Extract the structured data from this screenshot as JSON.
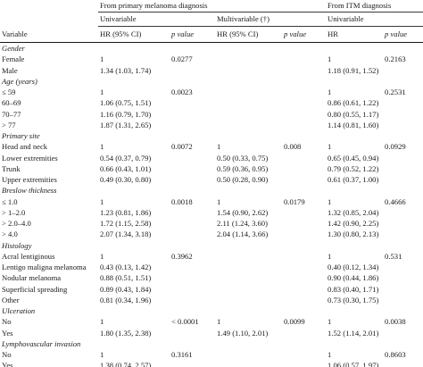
{
  "header": {
    "group_primary": "From primary melanoma diagnosis",
    "group_itm": "From ITM diagnosis",
    "sub_univariable": "Univariable",
    "sub_multivariable": "Multivariable (†)",
    "sub_univariable_itm": "Univariable",
    "col_variable": "Variable",
    "col_hr_univ": "HR (95% CI)",
    "col_p_univ": "p value",
    "col_hr_multi": "HR (95% CI)",
    "col_p_multi": "p value",
    "col_hr_itm": "HR",
    "col_p_itm": "p value"
  },
  "rows": [
    {
      "type": "group",
      "label": "Gender"
    },
    {
      "type": "row",
      "label": "Female",
      "hr_u": "1",
      "p_u": "0.0277",
      "hr_m": "",
      "p_m": "",
      "hr_i": "1",
      "p_i": "0.2163"
    },
    {
      "type": "row",
      "label": "Male",
      "hr_u": "1.34 (1.03, 1.74)",
      "p_u": "",
      "hr_m": "",
      "p_m": "",
      "hr_i": "1.18 (0.91, 1.52)",
      "p_i": ""
    },
    {
      "type": "group",
      "label": "Age (years)"
    },
    {
      "type": "row",
      "label": "≤ 59",
      "hr_u": "1",
      "p_u": "0.0023",
      "hr_m": "",
      "p_m": "",
      "hr_i": "1",
      "p_i": "0.2531"
    },
    {
      "type": "row",
      "label": "60–69",
      "hr_u": "1.06 (0.75, 1.51)",
      "p_u": "",
      "hr_m": "",
      "p_m": "",
      "hr_i": "0.86 (0.61, 1.22)",
      "p_i": ""
    },
    {
      "type": "row",
      "label": "70–77",
      "hr_u": "1.16 (0.79, 1.70)",
      "p_u": "",
      "hr_m": "",
      "p_m": "",
      "hr_i": "0.80 (0.55, 1.17)",
      "p_i": ""
    },
    {
      "type": "row",
      "label": "> 77",
      "hr_u": "1.87 (1.31, 2.65)",
      "p_u": "",
      "hr_m": "",
      "p_m": "",
      "hr_i": "1.14 (0.81, 1.60)",
      "p_i": ""
    },
    {
      "type": "group",
      "label": "Primary site"
    },
    {
      "type": "row",
      "label": "Head and neck",
      "hr_u": "1",
      "p_u": "0.0072",
      "hr_m": "1",
      "p_m": "0.008",
      "hr_i": "1",
      "p_i": "0.0929"
    },
    {
      "type": "row",
      "label": "Lower extremities",
      "hr_u": "0.54 (0.37, 0.79)",
      "p_u": "",
      "hr_m": "0.50 (0.33, 0.75)",
      "p_m": "",
      "hr_i": "0.65 (0.45, 0.94)",
      "p_i": ""
    },
    {
      "type": "row",
      "label": "Trunk",
      "hr_u": "0.66 (0.43, 1.01)",
      "p_u": "",
      "hr_m": "0.59 (0.36, 0.95)",
      "p_m": "",
      "hr_i": "0.79 (0.52, 1.22)",
      "p_i": ""
    },
    {
      "type": "row",
      "label": "Upper extremities",
      "hr_u": "0.49 (0.30, 0.80)",
      "p_u": "",
      "hr_m": "0.50 (0.28, 0.90)",
      "p_m": "",
      "hr_i": "0.61 (0.37, 1.00)",
      "p_i": ""
    },
    {
      "type": "group",
      "label": "Breslow thickness"
    },
    {
      "type": "row",
      "label": "≤ 1.0",
      "hr_u": "1",
      "p_u": "0.0018",
      "hr_m": "1",
      "p_m": "0.0179",
      "hr_i": "1",
      "p_i": "0.4666"
    },
    {
      "type": "row",
      "label": "> 1–2.0",
      "hr_u": "1.23 (0.81, 1.86)",
      "p_u": "",
      "hr_m": "1.54 (0.90, 2.62)",
      "p_m": "",
      "hr_i": "1.32 (0.85, 2.04)",
      "p_i": ""
    },
    {
      "type": "row",
      "label": "> 2.0–4.0",
      "hr_u": "1.72 (1.15, 2.58)",
      "p_u": "",
      "hr_m": "2.11 (1.24, 3.60)",
      "p_m": "",
      "hr_i": "1.42 (0.90, 2.25)",
      "p_i": ""
    },
    {
      "type": "row",
      "label": "> 4.0",
      "hr_u": "2.07 (1.34, 3.18)",
      "p_u": "",
      "hr_m": "2.04 (1.14, 3.66)",
      "p_m": "",
      "hr_i": "1.30 (0.80, 2.13)",
      "p_i": ""
    },
    {
      "type": "group",
      "label": "Histology"
    },
    {
      "type": "row",
      "label": "Acral lentiginous",
      "hr_u": "1",
      "p_u": "0.3962",
      "hr_m": "",
      "p_m": "",
      "hr_i": "1",
      "p_i": "0.531"
    },
    {
      "type": "row",
      "label": "Lentigo maligna melanoma",
      "hr_u": "0.43 (0.13, 1.42)",
      "p_u": "",
      "hr_m": "",
      "p_m": "",
      "hr_i": "0.40 (0.12, 1.34)",
      "p_i": ""
    },
    {
      "type": "row",
      "label": "Nodular melanoma",
      "hr_u": "0.88 (0.51, 1.51)",
      "p_u": "",
      "hr_m": "",
      "p_m": "",
      "hr_i": "0.90 (0.44, 1.86)",
      "p_i": ""
    },
    {
      "type": "row",
      "label": "Superficial spreading",
      "hr_u": "0.89 (0.43, 1.84)",
      "p_u": "",
      "hr_m": "",
      "p_m": "",
      "hr_i": "0.83 (0.40, 1.71)",
      "p_i": ""
    },
    {
      "type": "row",
      "label": "Other",
      "hr_u": "0.81 (0.34, 1.96)",
      "p_u": "",
      "hr_m": "",
      "p_m": "",
      "hr_i": "0.73 (0.30, 1.75)",
      "p_i": ""
    },
    {
      "type": "group",
      "label": "Ulceration"
    },
    {
      "type": "row",
      "label": "No",
      "hr_u": "1",
      "p_u": "< 0.0001",
      "hr_m": "1",
      "p_m": "0.0099",
      "hr_i": "1",
      "p_i": "0.0038"
    },
    {
      "type": "row",
      "label": "Yes",
      "hr_u": "1.80 (1.35, 2.38)",
      "p_u": "",
      "hr_m": "1.49 (1.10, 2.01)",
      "p_m": "",
      "hr_i": "1.52 (1.14, 2.01)",
      "p_i": ""
    },
    {
      "type": "group",
      "label": "Lymphovascular invasion"
    },
    {
      "type": "row",
      "label": "No",
      "hr_u": "1",
      "p_u": "0.3161",
      "hr_m": "",
      "p_m": "",
      "hr_i": "1",
      "p_i": "0.8603"
    },
    {
      "type": "row",
      "label": "Yes",
      "hr_u": "1.38 (0.74, 2.57)",
      "p_u": "",
      "hr_m": "",
      "p_m": "",
      "hr_i": "1.06 (0.57, 1.97)",
      "p_i": ""
    }
  ]
}
